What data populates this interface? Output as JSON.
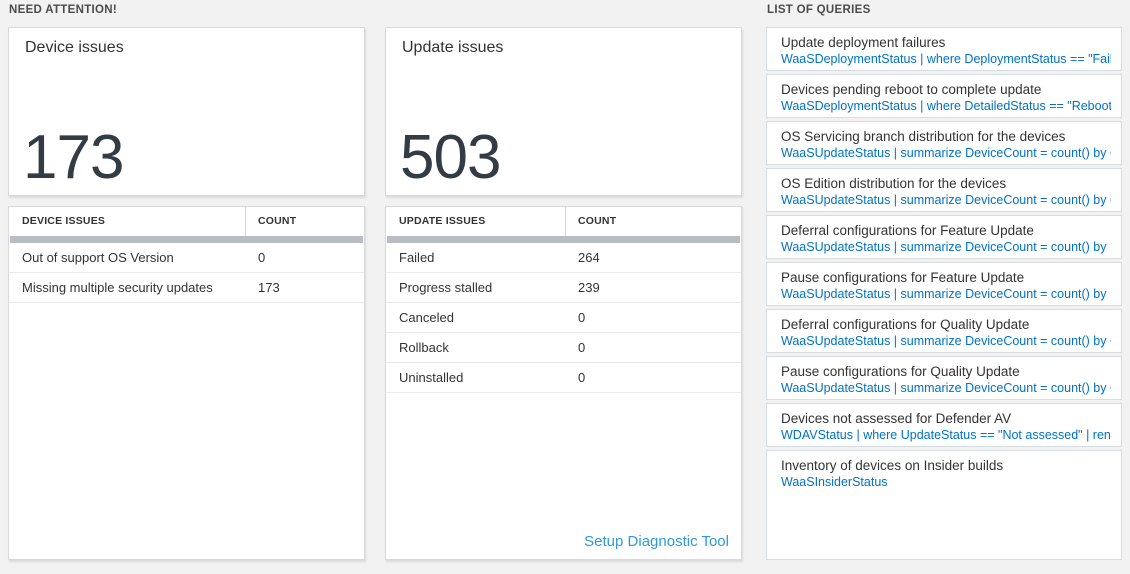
{
  "sections": {
    "need_attention_label": "NEED ATTENTION!",
    "queries_label": "LIST OF QUERIES"
  },
  "device_card": {
    "title": "Device issues",
    "value": "173"
  },
  "update_card": {
    "title": "Update issues",
    "value": "503"
  },
  "device_table": {
    "headers": [
      "DEVICE ISSUES",
      "COUNT"
    ],
    "rows": [
      [
        "Out of support OS Version",
        "0"
      ],
      [
        "Missing multiple security updates",
        "173"
      ]
    ]
  },
  "update_table": {
    "headers": [
      "UPDATE ISSUES",
      "COUNT"
    ],
    "rows": [
      [
        "Failed",
        "264"
      ],
      [
        "Progress stalled",
        "239"
      ],
      [
        "Canceled",
        "0"
      ],
      [
        "Rollback",
        "0"
      ],
      [
        "Uninstalled",
        "0"
      ]
    ],
    "footer_link": "Setup Diagnostic Tool"
  },
  "queries": [
    {
      "title": "Update deployment failures",
      "query": "WaaSDeploymentStatus | where DeploymentStatus == \"Failed\" |..."
    },
    {
      "title": "Devices pending reboot to complete update",
      "query": "WaaSDeploymentStatus | where DetailedStatus == \"Reboot pend..."
    },
    {
      "title": "OS Servicing branch distribution for the devices",
      "query": "WaaSUpdateStatus | summarize DeviceCount = count() by OSSer..."
    },
    {
      "title": "OS Edition distribution for the devices",
      "query": "WaaSUpdateStatus | summarize DeviceCount = count() by OSEdit..."
    },
    {
      "title": "Deferral configurations for Feature Update",
      "query": "WaaSUpdateStatus | summarize DeviceCount = count() by Featur..."
    },
    {
      "title": "Pause configurations for Feature Update",
      "query": "WaaSUpdateStatus | summarize DeviceCount = count() by Featur..."
    },
    {
      "title": "Deferral configurations for Quality Update",
      "query": "WaaSUpdateStatus | summarize DeviceCount = count() by Qualit..."
    },
    {
      "title": "Pause configurations for Quality Update",
      "query": "WaaSUpdateStatus | summarize DeviceCount = count() by Qualit..."
    },
    {
      "title": "Devices not assessed for Defender AV",
      "query": "WDAVStatus | where UpdateStatus == \"Not assessed\" | render ta..."
    },
    {
      "title": "Inventory of devices on Insider builds",
      "query": "WaaSInsiderStatus"
    }
  ],
  "colors": {
    "query_link_blue": "#0072c6",
    "setup_link_blue": "#2e9bd5",
    "big_number": "#333b45",
    "thick_bar": "#b9bcc1",
    "page_background": "#f2f2f2"
  }
}
